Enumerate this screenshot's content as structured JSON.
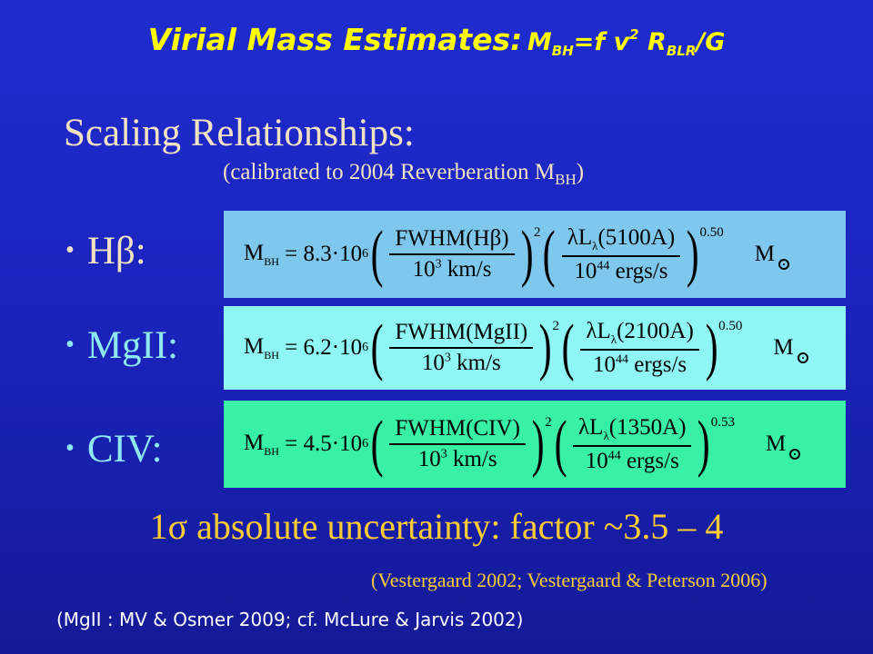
{
  "title": {
    "main": "Virial Mass Estimates",
    "colon": ":",
    "m": "M",
    "m_sub": "BH",
    "eq": "=",
    "f": "f",
    "v": " v",
    "v_sup": "2",
    "r": " R",
    "r_sub": "BLR",
    "g": "/G"
  },
  "scaling": {
    "heading": "Scaling Relationships:",
    "note_prefix": "(calibrated to 2004 Reverberation M",
    "note_sub": "BH",
    "note_suffix": ")"
  },
  "bullets": [
    {
      "dot": "•",
      "label": "Hβ:"
    },
    {
      "dot": "•",
      "label": "MgII:"
    },
    {
      "dot": "•",
      "label": "CIV:"
    }
  ],
  "formulas": [
    {
      "lhs": "M",
      "lhs_sub": "BH",
      "coef": "= 8.3·10",
      "coef_exp": "6",
      "num1": "FWHM(Hβ)",
      "den1_a": "10",
      "den1_exp": "3",
      "den1_b": " km/s",
      "exp1": "2",
      "num2": "λL",
      "num2_sub": "λ",
      "num2_b": "(5100A)",
      "den2_a": "10",
      "den2_exp": "44",
      "den2_b": " ergs/s",
      "exp2": "0.50",
      "unit": "M"
    },
    {
      "lhs": "M",
      "lhs_sub": "BH",
      "coef": "= 6.2·10",
      "coef_exp": "6",
      "num1": "FWHM(MgII)",
      "den1_a": "10",
      "den1_exp": "3",
      "den1_b": " km/s",
      "exp1": "2",
      "num2": "λL",
      "num2_sub": "λ",
      "num2_b": "(2100A)",
      "den2_a": "10",
      "den2_exp": "44",
      "den2_b": " ergs/s",
      "exp2": "0.50",
      "unit": "M"
    },
    {
      "lhs": "M",
      "lhs_sub": "BH",
      "coef": "= 4.5·10",
      "coef_exp": "6",
      "num1": "FWHM(CIV)",
      "den1_a": "10",
      "den1_exp": "3",
      "den1_b": " km/s",
      "exp1": "2",
      "num2": "λL",
      "num2_sub": "λ",
      "num2_b": "(1350A)",
      "den2_a": "10",
      "den2_exp": "44",
      "den2_b": " ergs/s",
      "exp2": "0.53",
      "unit": "M"
    }
  ],
  "uncertainty": "1σ absolute uncertainty: factor ~3.5 – 4",
  "references": {
    "ref1": "(Vestergaard 2002; Vestergaard & Peterson 2006)",
    "ref2": "(MgII : MV & Osmer 2009; cf. McLure & Jarvis 2002)"
  },
  "colors": {
    "background": "#1f2ccf",
    "title": "#ffff00",
    "hb_box": "#7ec8ee",
    "mg_box": "#8ff6f6",
    "civ_box": "#38f0a6",
    "uncertainty": "#ffcc33"
  },
  "icons": {
    "solar": "sun-symbol-icon"
  }
}
